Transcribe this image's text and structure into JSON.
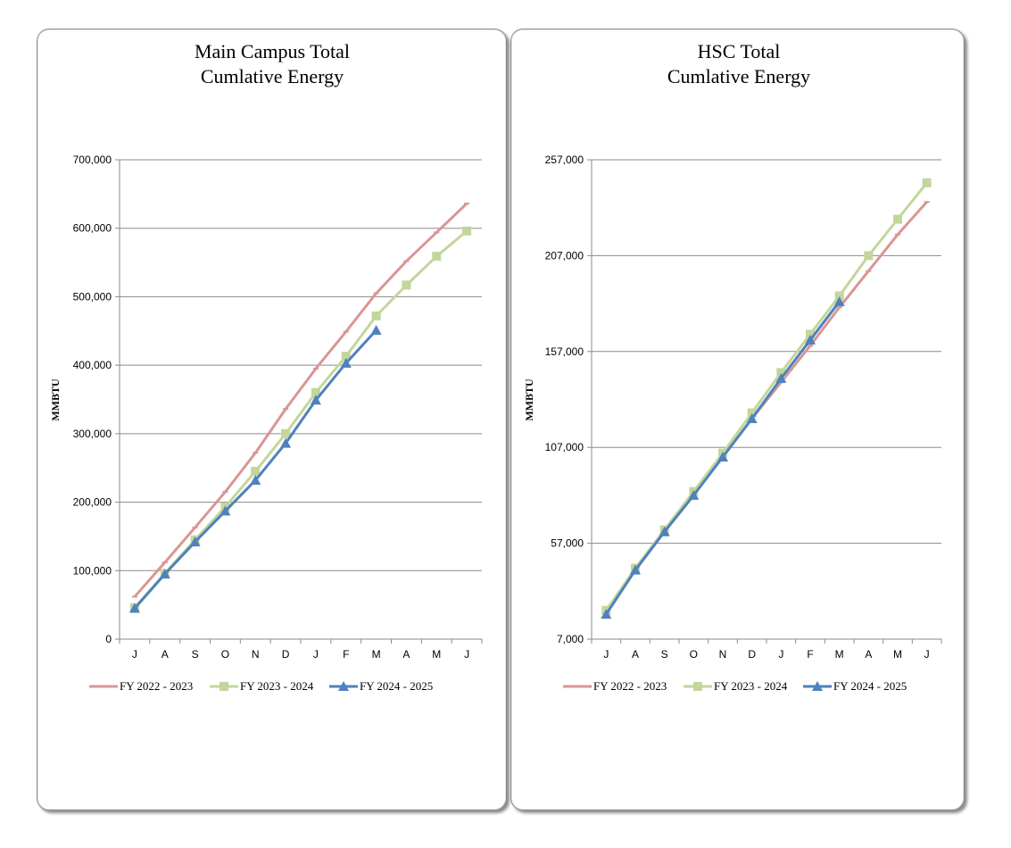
{
  "chart_data": [
    {
      "type": "line",
      "title_line1": "Main Campus Total",
      "title_line2": "Cumlative Energy",
      "ylabel": "MMBTU",
      "xlabel": "",
      "categories": [
        "J",
        "A",
        "S",
        "O",
        "N",
        "D",
        "J",
        "F",
        "M",
        "A",
        "M",
        "J"
      ],
      "ylim": [
        0,
        700000
      ],
      "yticks": [
        0,
        100000,
        200000,
        300000,
        400000,
        500000,
        600000,
        700000
      ],
      "ytick_labels": [
        "0",
        "100,000",
        "200,000",
        "300,000",
        "400,000",
        "500,000",
        "600,000",
        "700,000"
      ],
      "grid": true,
      "legend": "bottom",
      "series": [
        {
          "name": "FY 2022 - 2023",
          "color": "#d99694",
          "marker": "dash",
          "values": [
            62000,
            112000,
            163000,
            215000,
            272000,
            336000,
            395000,
            449000,
            505000,
            552000,
            594000,
            636000
          ]
        },
        {
          "name": "FY 2023 - 2024",
          "color": "#c3d69b",
          "marker": "square",
          "values": [
            46000,
            96000,
            145000,
            193000,
            245000,
            300000,
            360000,
            413000,
            472000,
            517000,
            559000,
            596000
          ]
        },
        {
          "name": "FY 2024 - 2025",
          "color": "#4f81bd",
          "marker": "triangle",
          "values": [
            45000,
            95000,
            142000,
            187000,
            232000,
            286000,
            349000,
            403000,
            451000,
            null,
            null,
            null
          ]
        }
      ]
    },
    {
      "type": "line",
      "title_line1": "HSC Total",
      "title_line2": "Cumlative Energy",
      "ylabel": "MMBTU",
      "xlabel": "",
      "categories": [
        "J",
        "A",
        "S",
        "O",
        "N",
        "D",
        "J",
        "F",
        "M",
        "A",
        "M",
        "J"
      ],
      "ylim": [
        7000,
        257000
      ],
      "yticks": [
        7000,
        57000,
        107000,
        157000,
        207000,
        257000
      ],
      "ytick_labels": [
        "7,000",
        "57,000",
        "107,000",
        "157,000",
        "207,000",
        "257,000"
      ],
      "grid": true,
      "legend": "bottom",
      "series": [
        {
          "name": "FY 2022 - 2023",
          "color": "#d99694",
          "marker": "dash",
          "values": [
            21000,
            43000,
            64000,
            83000,
            102000,
            122000,
            141000,
            160000,
            180000,
            199000,
            218000,
            235000
          ]
        },
        {
          "name": "FY 2023 - 2024",
          "color": "#c3d69b",
          "marker": "square",
          "values": [
            22000,
            44000,
            64000,
            84000,
            104000,
            125000,
            146000,
            166000,
            186000,
            207000,
            226000,
            245000
          ]
        },
        {
          "name": "FY 2024 - 2025",
          "color": "#4f81bd",
          "marker": "triangle",
          "values": [
            20000,
            43000,
            63000,
            82000,
            102000,
            122000,
            143000,
            163000,
            183000,
            null,
            null,
            null
          ]
        }
      ]
    }
  ]
}
